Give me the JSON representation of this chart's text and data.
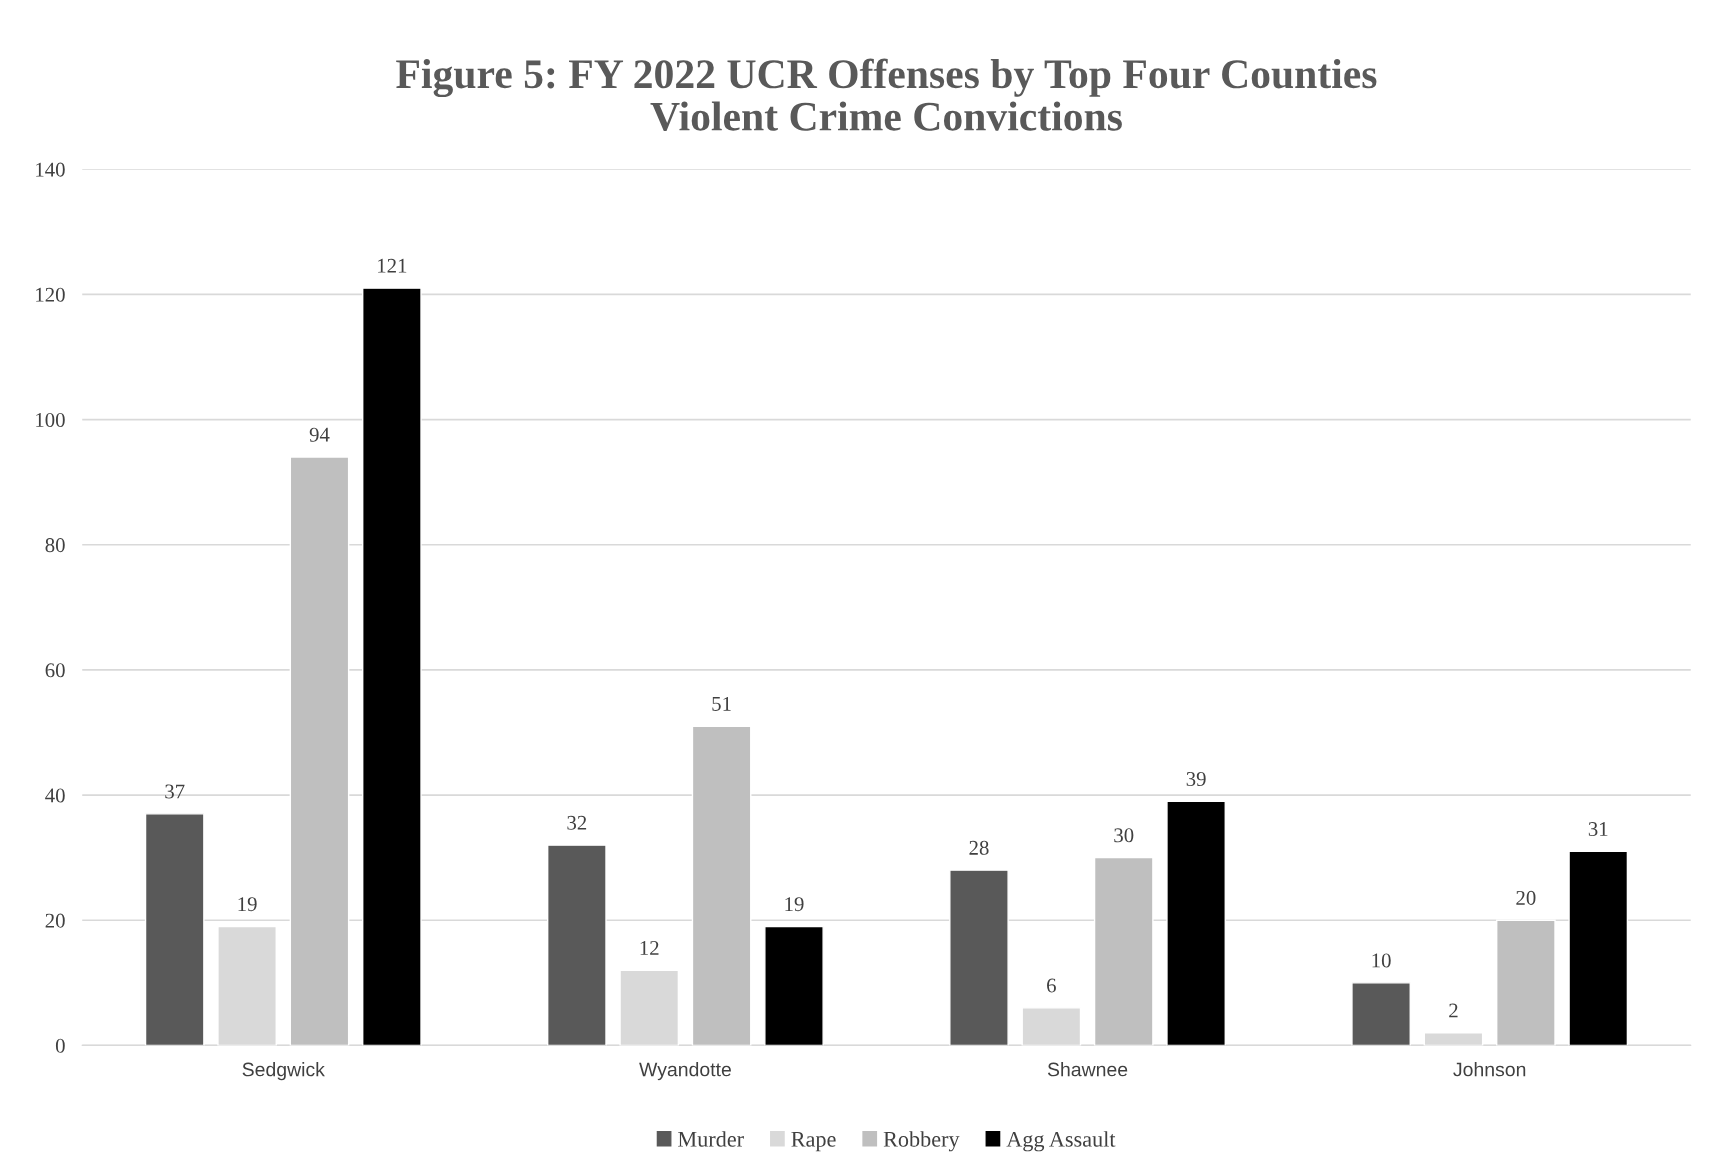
{
  "chart_data": {
    "type": "bar",
    "title": "Figure 5: FY 2022 UCR Offenses by Top Four Counties\nViolent Crime Convictions",
    "categories": [
      "Sedgwick",
      "Wyandotte",
      "Shawnee",
      "Johnson"
    ],
    "series": [
      {
        "name": "Murder",
        "color": "#595959",
        "values": [
          37,
          32,
          28,
          10
        ]
      },
      {
        "name": "Rape",
        "color": "#d9d9d9",
        "values": [
          19,
          12,
          6,
          2
        ]
      },
      {
        "name": "Robbery",
        "color": "#bfbfbf",
        "values": [
          94,
          51,
          30,
          20
        ]
      },
      {
        "name": "Agg Assault",
        "color": "#000000",
        "values": [
          121,
          19,
          39,
          31
        ]
      }
    ],
    "ylim": [
      0,
      140
    ],
    "yticks": [
      0,
      20,
      40,
      60,
      80,
      100,
      120,
      140
    ],
    "grid": "y",
    "legend": "bottom",
    "data_labels": true
  }
}
